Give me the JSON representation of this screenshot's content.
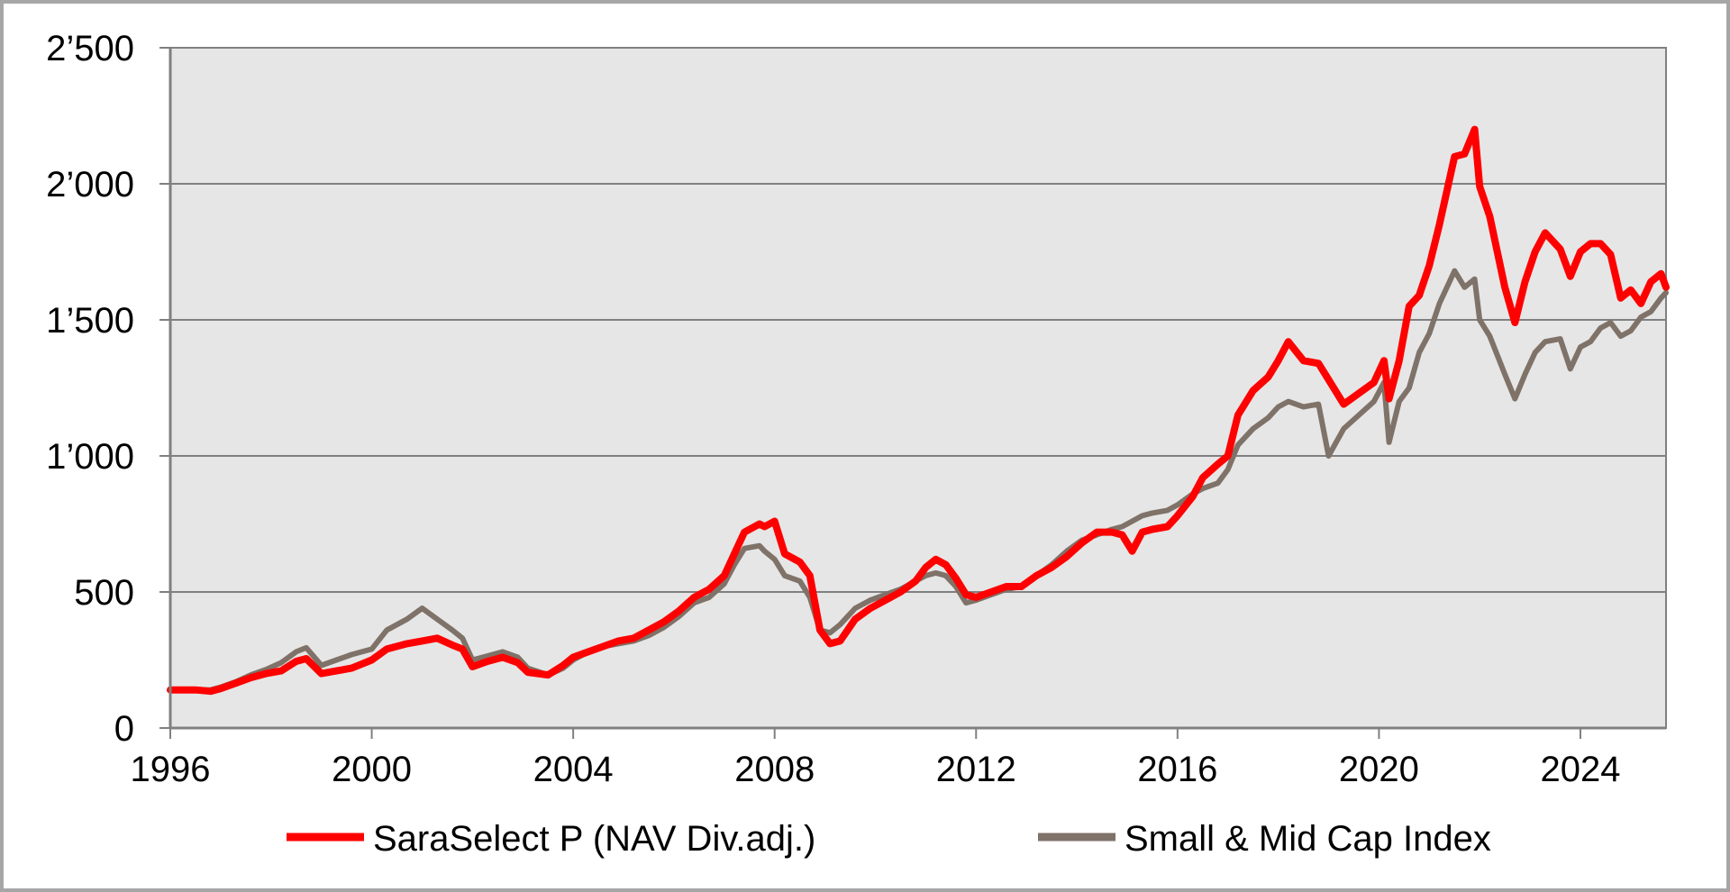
{
  "chart_data": {
    "type": "line",
    "title": "",
    "xlabel": "",
    "ylabel": "",
    "xlim": [
      1996,
      2025.7
    ],
    "ylim": [
      0,
      2500
    ],
    "x_ticks": [
      1996,
      2000,
      2004,
      2008,
      2012,
      2016,
      2020,
      2024
    ],
    "x_tick_labels": [
      "1996",
      "2000",
      "2004",
      "2008",
      "2012",
      "2016",
      "2020",
      "2024"
    ],
    "y_ticks": [
      0,
      500,
      1000,
      1500,
      2000,
      2500
    ],
    "y_tick_labels": [
      "0",
      "500",
      "1’000",
      "1’500",
      "2’000",
      "2’500"
    ],
    "grid": "horizontal",
    "legend_position": "bottom",
    "colors": {
      "plot_background": "#e6e6e6",
      "gridline": "#808080",
      "frame": "#a6a6a6"
    },
    "series": [
      {
        "name": "SaraSelect P (NAV Div.adj.)",
        "color": "#ff0000",
        "x": [
          1996.0,
          1996.5,
          1996.8,
          1997.0,
          1997.3,
          1997.6,
          1997.9,
          1998.2,
          1998.5,
          1998.7,
          1999.0,
          1999.3,
          1999.6,
          2000.0,
          2000.3,
          2000.7,
          2001.0,
          2001.3,
          2001.6,
          2001.8,
          2002.0,
          2002.3,
          2002.6,
          2002.9,
          2003.1,
          2003.5,
          2003.8,
          2004.0,
          2004.3,
          2004.6,
          2004.9,
          2005.2,
          2005.5,
          2005.8,
          2006.1,
          2006.4,
          2006.7,
          2007.0,
          2007.2,
          2007.4,
          2007.7,
          2007.8,
          2008.0,
          2008.2,
          2008.5,
          2008.7,
          2008.9,
          2009.1,
          2009.3,
          2009.6,
          2009.9,
          2010.2,
          2010.5,
          2010.8,
          2011.0,
          2011.2,
          2011.4,
          2011.6,
          2011.8,
          2012.0,
          2012.3,
          2012.6,
          2012.9,
          2013.2,
          2013.5,
          2013.8,
          2014.1,
          2014.4,
          2014.7,
          2014.9,
          2015.1,
          2015.3,
          2015.5,
          2015.8,
          2016.0,
          2016.3,
          2016.5,
          2016.8,
          2017.0,
          2017.2,
          2017.5,
          2017.8,
          2018.0,
          2018.2,
          2018.5,
          2018.8,
          2019.0,
          2019.3,
          2019.6,
          2019.9,
          2020.1,
          2020.2,
          2020.4,
          2020.6,
          2020.8,
          2021.0,
          2021.2,
          2021.5,
          2021.7,
          2021.9,
          2022.0,
          2022.2,
          2022.5,
          2022.7,
          2022.9,
          2023.1,
          2023.3,
          2023.6,
          2023.8,
          2024.0,
          2024.2,
          2024.4,
          2024.6,
          2024.8,
          2025.0,
          2025.2,
          2025.4,
          2025.6,
          2025.7
        ],
        "y": [
          140,
          140,
          135,
          145,
          165,
          185,
          200,
          210,
          245,
          255,
          200,
          210,
          220,
          250,
          290,
          310,
          320,
          330,
          305,
          290,
          225,
          245,
          260,
          240,
          205,
          195,
          230,
          260,
          280,
          300,
          320,
          330,
          360,
          390,
          430,
          480,
          510,
          560,
          640,
          720,
          750,
          740,
          760,
          640,
          610,
          560,
          360,
          310,
          320,
          400,
          440,
          470,
          500,
          540,
          590,
          620,
          600,
          550,
          490,
          480,
          500,
          520,
          520,
          560,
          590,
          630,
          680,
          720,
          720,
          710,
          650,
          720,
          730,
          740,
          780,
          850,
          920,
          970,
          1000,
          1150,
          1240,
          1290,
          1350,
          1420,
          1350,
          1340,
          1280,
          1190,
          1230,
          1270,
          1350,
          1210,
          1350,
          1550,
          1590,
          1700,
          1850,
          2100,
          2110,
          2200,
          1990,
          1880,
          1620,
          1490,
          1640,
          1750,
          1820,
          1760,
          1660,
          1750,
          1780,
          1780,
          1740,
          1580,
          1610,
          1560,
          1640,
          1670,
          1620
        ]
      },
      {
        "name": "Small & Mid Cap Index",
        "color": "#7f7268",
        "x": [
          1996.0,
          1996.5,
          1996.8,
          1997.0,
          1997.3,
          1997.6,
          1997.9,
          1998.2,
          1998.5,
          1998.7,
          1999.0,
          1999.3,
          1999.6,
          2000.0,
          2000.3,
          2000.7,
          2001.0,
          2001.3,
          2001.6,
          2001.8,
          2002.0,
          2002.3,
          2002.6,
          2002.9,
          2003.1,
          2003.5,
          2003.8,
          2004.0,
          2004.3,
          2004.6,
          2004.9,
          2005.2,
          2005.5,
          2005.8,
          2006.1,
          2006.4,
          2006.7,
          2007.0,
          2007.2,
          2007.4,
          2007.7,
          2007.8,
          2008.0,
          2008.2,
          2008.5,
          2008.7,
          2008.9,
          2009.1,
          2009.3,
          2009.6,
          2009.9,
          2010.2,
          2010.5,
          2010.8,
          2011.0,
          2011.2,
          2011.4,
          2011.6,
          2011.8,
          2012.0,
          2012.3,
          2012.6,
          2012.9,
          2013.2,
          2013.5,
          2013.8,
          2014.1,
          2014.4,
          2014.7,
          2014.9,
          2015.1,
          2015.3,
          2015.5,
          2015.8,
          2016.0,
          2016.3,
          2016.5,
          2016.8,
          2017.0,
          2017.2,
          2017.5,
          2017.8,
          2018.0,
          2018.2,
          2018.5,
          2018.8,
          2019.0,
          2019.3,
          2019.6,
          2019.9,
          2020.1,
          2020.2,
          2020.4,
          2020.6,
          2020.8,
          2021.0,
          2021.2,
          2021.5,
          2021.7,
          2021.9,
          2022.0,
          2022.2,
          2022.5,
          2022.7,
          2022.9,
          2023.1,
          2023.3,
          2023.6,
          2023.8,
          2024.0,
          2024.2,
          2024.4,
          2024.6,
          2024.8,
          2025.0,
          2025.2,
          2025.4,
          2025.6,
          2025.7
        ],
        "y": [
          140,
          140,
          140,
          150,
          170,
          195,
          215,
          240,
          280,
          295,
          230,
          250,
          270,
          290,
          360,
          400,
          440,
          400,
          360,
          330,
          250,
          265,
          280,
          260,
          220,
          195,
          220,
          250,
          280,
          300,
          310,
          320,
          340,
          370,
          410,
          460,
          480,
          530,
          600,
          660,
          670,
          650,
          620,
          560,
          540,
          480,
          360,
          350,
          380,
          440,
          470,
          490,
          510,
          540,
          560,
          570,
          560,
          520,
          460,
          470,
          490,
          510,
          520,
          560,
          600,
          650,
          690,
          710,
          730,
          740,
          760,
          780,
          790,
          800,
          820,
          860,
          880,
          900,
          950,
          1040,
          1100,
          1140,
          1180,
          1200,
          1180,
          1190,
          1000,
          1100,
          1150,
          1200,
          1270,
          1050,
          1200,
          1250,
          1380,
          1450,
          1560,
          1680,
          1620,
          1650,
          1500,
          1440,
          1300,
          1210,
          1300,
          1380,
          1420,
          1430,
          1320,
          1400,
          1420,
          1470,
          1490,
          1440,
          1460,
          1510,
          1530,
          1580,
          1600
        ]
      }
    ]
  }
}
